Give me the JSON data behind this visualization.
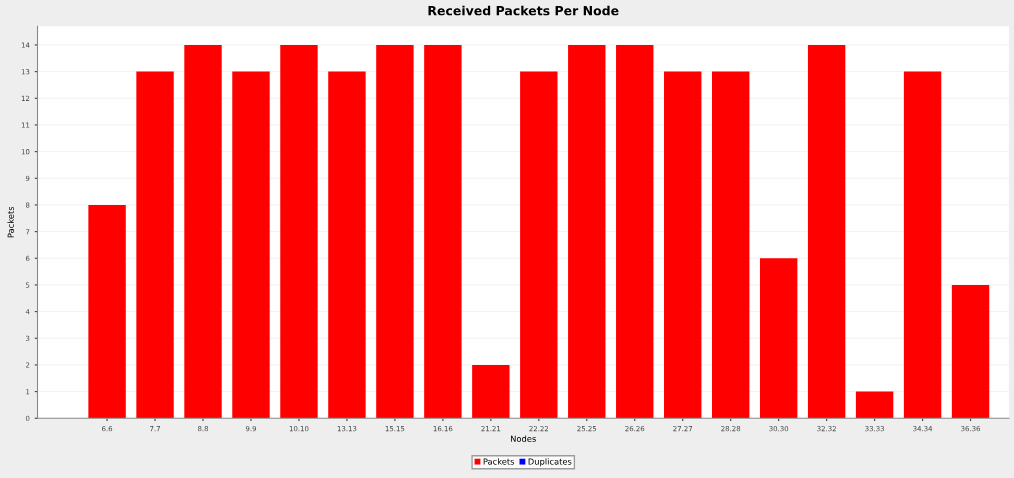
{
  "chart_data": {
    "type": "bar",
    "title": "Received Packets Per Node",
    "xlabel": "Nodes",
    "ylabel": "Packets",
    "categories": [
      "6.6",
      "7.7",
      "8.8",
      "9.9",
      "10.10",
      "13.13",
      "15.15",
      "16.16",
      "21.21",
      "22.22",
      "25.25",
      "26.26",
      "27.27",
      "28.28",
      "30.30",
      "32.32",
      "33.33",
      "34.34",
      "36.36"
    ],
    "series": [
      {
        "name": "Packets",
        "color": "#ff0000",
        "values": [
          8,
          13,
          14,
          13,
          14,
          13,
          14,
          14,
          2,
          13,
          14,
          14,
          13,
          13,
          6,
          14,
          1,
          13,
          5
        ]
      },
      {
        "name": "Duplicates",
        "color": "#0000ff",
        "values": [
          0,
          0,
          0,
          0,
          0,
          0,
          0,
          0,
          0,
          0,
          0,
          0,
          0,
          0,
          0,
          0,
          0,
          0,
          0
        ]
      }
    ],
    "ylim": [
      0,
      14.7
    ],
    "yticks": [
      0,
      1,
      2,
      3,
      4,
      5,
      6,
      7,
      8,
      9,
      10,
      11,
      12,
      13,
      14
    ],
    "grid": "y",
    "legend": "bottom"
  }
}
